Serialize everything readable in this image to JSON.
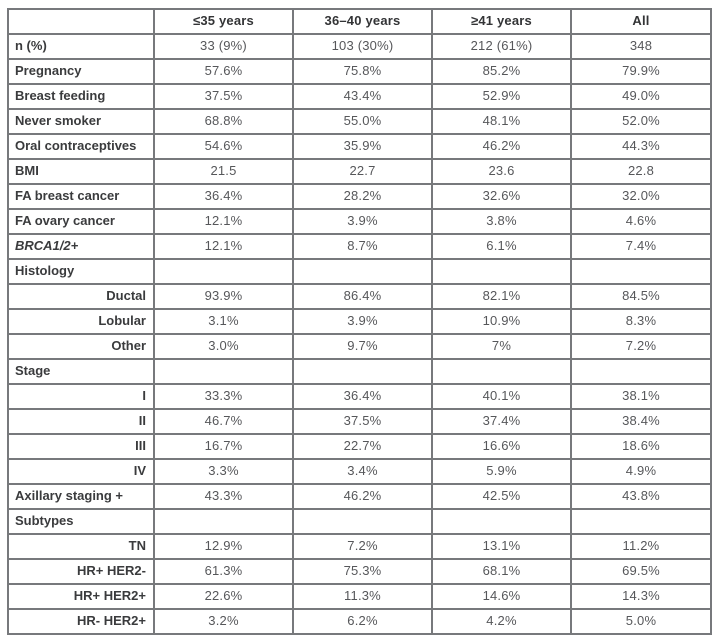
{
  "table": {
    "columns": [
      "",
      "≤35 years",
      "36–40 years",
      "≥41 years",
      "All"
    ],
    "rows": [
      {
        "label": "n (%)",
        "style": "section",
        "values": [
          "33 (9%)",
          "103 (30%)",
          "212 (61%)",
          "348"
        ]
      },
      {
        "label": "Pregnancy",
        "style": "section",
        "values": [
          "57.6%",
          "75.8%",
          "85.2%",
          "79.9%"
        ]
      },
      {
        "label": "Breast feeding",
        "style": "section",
        "values": [
          "37.5%",
          "43.4%",
          "52.9%",
          "49.0%"
        ]
      },
      {
        "label": "Never smoker",
        "style": "section",
        "values": [
          "68.8%",
          "55.0%",
          "48.1%",
          "52.0%"
        ]
      },
      {
        "label": "Oral contraceptives",
        "style": "section",
        "values": [
          "54.6%",
          "35.9%",
          "46.2%",
          "44.3%"
        ]
      },
      {
        "label": "BMI",
        "style": "section",
        "values": [
          "21.5",
          "22.7",
          "23.6",
          "22.8"
        ]
      },
      {
        "label": "FA breast cancer",
        "style": "section",
        "values": [
          "36.4%",
          "28.2%",
          "32.6%",
          "32.0%"
        ]
      },
      {
        "label": "FA ovary cancer",
        "style": "section",
        "values": [
          "12.1%",
          "3.9%",
          "3.8%",
          "4.6%"
        ]
      },
      {
        "label": "BRCA1/2+",
        "style": "section italic",
        "values": [
          "12.1%",
          "8.7%",
          "6.1%",
          "7.4%"
        ]
      },
      {
        "label": "Histology",
        "style": "section",
        "values": [
          "",
          "",
          "",
          ""
        ]
      },
      {
        "label": "Ductal",
        "style": "sub",
        "values": [
          "93.9%",
          "86.4%",
          "82.1%",
          "84.5%"
        ]
      },
      {
        "label": "Lobular",
        "style": "sub",
        "values": [
          "3.1%",
          "3.9%",
          "10.9%",
          "8.3%"
        ]
      },
      {
        "label": "Other",
        "style": "sub",
        "values": [
          "3.0%",
          "9.7%",
          "7%",
          "7.2%"
        ]
      },
      {
        "label": "Stage",
        "style": "section",
        "values": [
          "",
          "",
          "",
          ""
        ]
      },
      {
        "label": "I",
        "style": "sub",
        "values": [
          "33.3%",
          "36.4%",
          "40.1%",
          "38.1%"
        ]
      },
      {
        "label": "II",
        "style": "sub",
        "values": [
          "46.7%",
          "37.5%",
          "37.4%",
          "38.4%"
        ]
      },
      {
        "label": "III",
        "style": "sub",
        "values": [
          "16.7%",
          "22.7%",
          "16.6%",
          "18.6%"
        ]
      },
      {
        "label": "IV",
        "style": "sub",
        "values": [
          "3.3%",
          "3.4%",
          "5.9%",
          "4.9%"
        ]
      },
      {
        "label": "Axillary staging +",
        "style": "section",
        "values": [
          "43.3%",
          "46.2%",
          "42.5%",
          "43.8%"
        ]
      },
      {
        "label": "Subtypes",
        "style": "section",
        "values": [
          "",
          "",
          "",
          ""
        ]
      },
      {
        "label": "TN",
        "style": "sub",
        "values": [
          "12.9%",
          "7.2%",
          "13.1%",
          "11.2%"
        ]
      },
      {
        "label": "HR+ HER2-",
        "style": "sub",
        "values": [
          "61.3%",
          "75.3%",
          "68.1%",
          "69.5%"
        ]
      },
      {
        "label": "HR+ HER2+",
        "style": "sub",
        "values": [
          "22.6%",
          "11.3%",
          "14.6%",
          "14.3%"
        ]
      },
      {
        "label": "HR- HER2+",
        "style": "sub",
        "values": [
          "3.2%",
          "6.2%",
          "4.2%",
          "5.0%"
        ]
      }
    ]
  },
  "colors": {
    "border": "#77797c",
    "label_text": "#3a3b3d",
    "value_text": "#56575a",
    "background": "#ffffff"
  }
}
